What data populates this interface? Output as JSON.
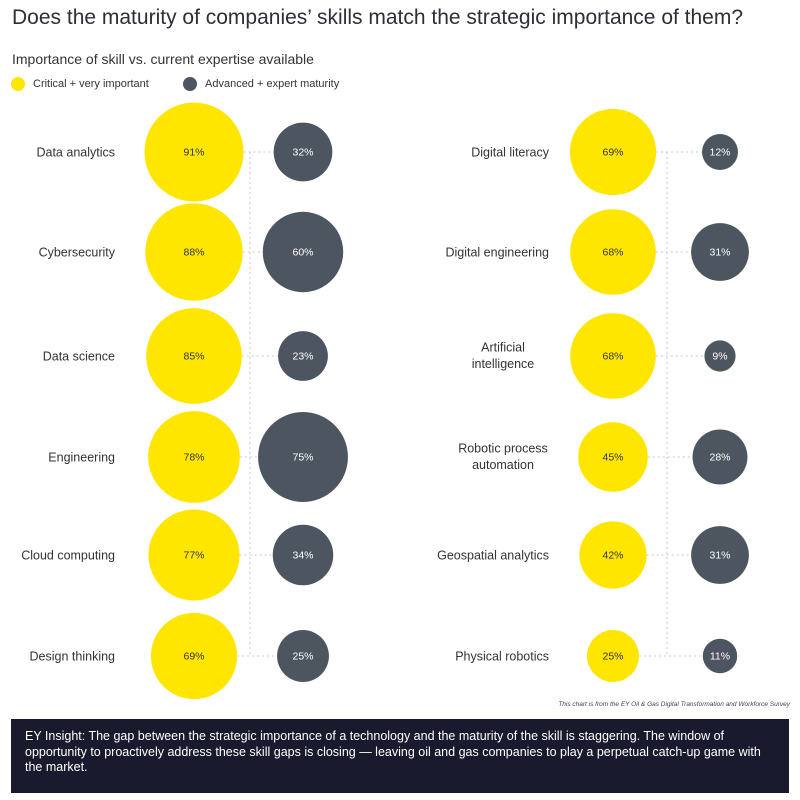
{
  "title": "Does the maturity of companies’ skills match the strategic importance of them?",
  "subtitle": "Importance of skill vs. current expertise available",
  "legend": {
    "importance": "Critical + very important",
    "maturity": "Advanced + expert maturity"
  },
  "colors": {
    "importance": "#FFE600",
    "maturity": "#4D5560",
    "connector": "#C8C8C8",
    "insight_bg": "#1A1A2E"
  },
  "chart_data": {
    "type": "bubble",
    "title": "Importance of skill vs. current expertise available",
    "series": [
      {
        "name": "Critical + very important",
        "key": "importance"
      },
      {
        "name": "Advanced + expert maturity",
        "key": "maturity"
      }
    ],
    "unit": "%",
    "columns": [
      [
        {
          "skill": "Data analytics",
          "importance": 91,
          "maturity": 32
        },
        {
          "skill": "Cybersecurity",
          "importance": 88,
          "maturity": 60
        },
        {
          "skill": "Data science",
          "importance": 85,
          "maturity": 23
        },
        {
          "skill": "Engineering",
          "importance": 78,
          "maturity": 75
        },
        {
          "skill": "Cloud computing",
          "importance": 77,
          "maturity": 34
        },
        {
          "skill": "Design thinking",
          "importance": 69,
          "maturity": 25
        }
      ],
      [
        {
          "skill": "Digital literacy",
          "importance": 69,
          "maturity": 12
        },
        {
          "skill": "Digital engineering",
          "importance": 68,
          "maturity": 31
        },
        {
          "skill": "Artificial intelligence",
          "importance": 68,
          "maturity": 9
        },
        {
          "skill": "Robotic process automation",
          "importance": 45,
          "maturity": 28
        },
        {
          "skill": "Geospatial analytics",
          "importance": 42,
          "maturity": 31
        },
        {
          "skill": "Physical robotics",
          "importance": 25,
          "maturity": 11
        }
      ]
    ]
  },
  "source": "This chart is from the EY Oil & Gas Digital Transformation and Workforce Survey",
  "insight": "EY Insight: The gap between the strategic importance of a technology and the maturity of the skill is staggering. The window of opportunity to proactively address these skill gaps is closing — leaving oil and gas companies to play a perpetual catch-up game with the market."
}
